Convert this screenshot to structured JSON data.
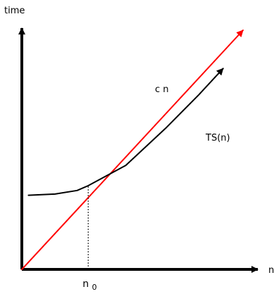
{
  "chart_data": {
    "type": "line",
    "title": "",
    "xlabel": "n",
    "ylabel": "time",
    "grid": false,
    "xlim": [
      0,
      10
    ],
    "ylim": [
      0,
      10
    ],
    "series": [
      {
        "name": "c n",
        "color": "#ff0000",
        "x": [
          0,
          10
        ],
        "y": [
          0,
          10
        ]
      },
      {
        "name": "TS(n)",
        "color": "#000000",
        "x": [
          0.3,
          1.5,
          2.5,
          3.0,
          4.7,
          6.5,
          8.0,
          9.1
        ],
        "y": [
          3.1,
          3.15,
          3.3,
          3.5,
          4.35,
          5.9,
          7.3,
          8.4
        ]
      }
    ],
    "annotations": [
      {
        "type": "vertical-dotted-line",
        "x": 3.0,
        "y_from": 0,
        "y_to": 3.5
      }
    ],
    "ticks": {
      "x": [
        {
          "value": 3.0,
          "label": "n",
          "subscript": "0"
        }
      ]
    },
    "colors": {
      "axes": "#000000",
      "guide": "#000000",
      "background": "#ffffff"
    }
  }
}
